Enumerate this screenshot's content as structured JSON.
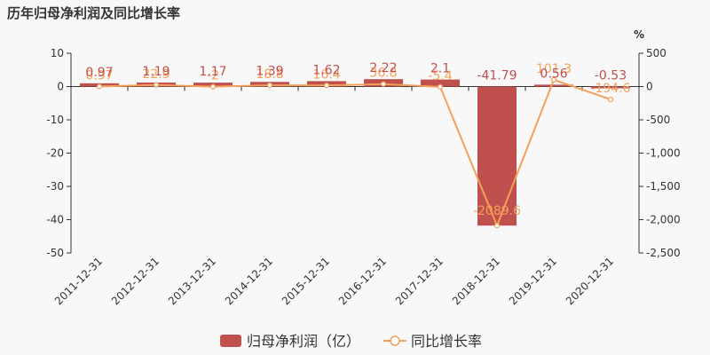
{
  "chart_data": {
    "type": "bar+line",
    "title": "历年归母净利润及同比增长率",
    "categories": [
      "2011-12-31",
      "2012-12-31",
      "2013-12-31",
      "2014-12-31",
      "2015-12-31",
      "2016-12-31",
      "2017-12-31",
      "2018-12-31",
      "2019-12-31",
      "2020-12-31"
    ],
    "left_axis": {
      "min": -50,
      "max": 10,
      "step": 10,
      "ticks": [
        "10",
        "0",
        "-10",
        "-20",
        "-30",
        "-40",
        "-50"
      ]
    },
    "right_axis": {
      "unit": "%",
      "min": -2500,
      "max": 500,
      "step": 500,
      "ticks": [
        "500",
        "0",
        "-500",
        "-1,000",
        "-1,500",
        "-2,000",
        "-2,500"
      ]
    },
    "series": [
      {
        "name": "归母净利润（亿）",
        "type": "bar",
        "axis": "left",
        "color": "#c0504d",
        "values": [
          0.97,
          1.19,
          1.17,
          1.39,
          1.62,
          2.22,
          2.1,
          -41.79,
          0.56,
          -0.53
        ],
        "labels": [
          "0.97",
          "1.19",
          "1.17",
          "1.39",
          "1.62",
          "2.22",
          "2.1",
          "-41.79",
          "0.56",
          "-0.53"
        ]
      },
      {
        "name": "同比增长率",
        "type": "line",
        "axis": "right",
        "color": "#f5a05a",
        "values": [
          0.97,
          22.9,
          -2,
          18.8,
          16.4,
          36.8,
          -5.4,
          -2089.6,
          101.3,
          -194.6
        ],
        "labels": [
          "0.97",
          "22.9",
          "-2",
          "18.8",
          "16.4",
          "36.8",
          "-5.4",
          "-2089.6",
          "101.3",
          "-194.6"
        ]
      }
    ],
    "legend": {
      "position": "bottom-center"
    },
    "grid": false
  }
}
